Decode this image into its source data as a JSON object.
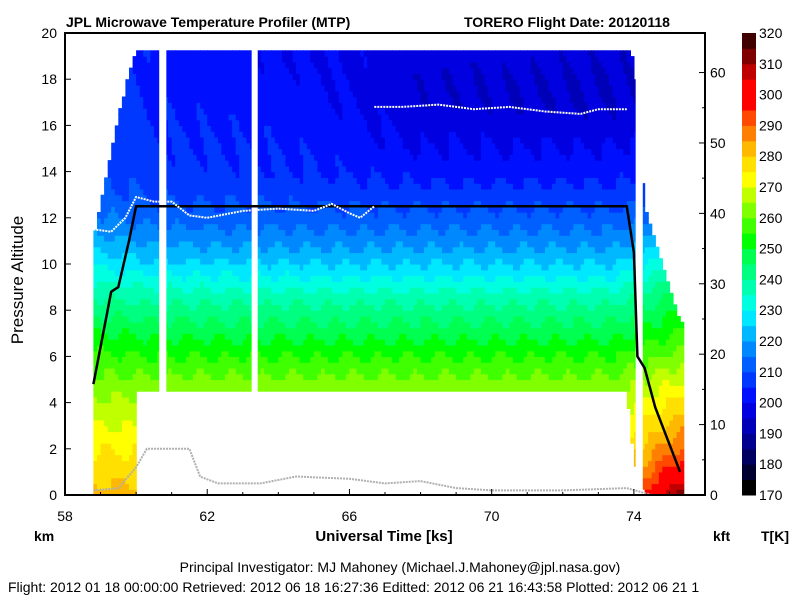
{
  "header": {
    "title": "JPL Microwave Temperature Profiler (MTP)",
    "flight_info": "TORERO  Flight Date: 20120118"
  },
  "footer": {
    "pi": "Principal Investigator: MJ Mahoney (Michael.J.Mahoney@jpl.nasa.gov)",
    "dates": "Flight: 2012 01 18 00:00:00   Retrieved: 2012 06 18 16:27:36   Editted: 2012 06 21 16:43:58  Plotted: 2012 06 21 1"
  },
  "chart_data": {
    "type": "heatmap",
    "title": "JPL Microwave Temperature Profiler (MTP)",
    "xlabel": "Universal Time [ks]",
    "ylabel": "Pressure Altitude",
    "y_unit_left": "km",
    "y_unit_right": "kft",
    "colorbar_label": "T[K]",
    "xlim": [
      58,
      76
    ],
    "ylim": [
      0,
      20
    ],
    "y2lim_kft": [
      0,
      65.6
    ],
    "xticks": [
      "58",
      "62",
      "66",
      "70",
      "74"
    ],
    "yticks": [
      "0",
      "2",
      "4",
      "6",
      "8",
      "10",
      "12",
      "14",
      "16",
      "18",
      "20"
    ],
    "y2ticks": [
      "0",
      "10",
      "20",
      "30",
      "40",
      "50",
      "60"
    ],
    "colorbar": {
      "range": [
        170,
        320
      ],
      "step": 5,
      "ticks": [
        "170",
        "180",
        "190",
        "200",
        "210",
        "220",
        "230",
        "240",
        "250",
        "260",
        "270",
        "280",
        "290",
        "300",
        "310",
        "320"
      ],
      "colors": [
        "#000000",
        "#000030",
        "#000060",
        "#000090",
        "#0000b8",
        "#0000e0",
        "#0010ff",
        "#0038ff",
        "#0060ff",
        "#0088ff",
        "#00b8ff",
        "#00e8ff",
        "#00ffe0",
        "#00ffb0",
        "#00ff80",
        "#00ff50",
        "#00ff00",
        "#40ff00",
        "#80ff00",
        "#c0ff00",
        "#ffff00",
        "#ffe000",
        "#ffb800",
        "#ff8000",
        "#ff4800",
        "#ff0000",
        "#ff0000",
        "#c00000",
        "#800000",
        "#400000"
      ]
    },
    "altitudes_km": [
      0,
      1,
      2,
      3,
      4,
      5,
      6,
      7,
      8,
      9,
      10,
      11,
      12,
      13,
      14,
      15,
      16,
      17,
      18,
      19,
      20
    ],
    "profiles": [
      {
        "time": 58.8,
        "temps": [
          282,
          278,
          275,
          270,
          266,
          261,
          256,
          250,
          244,
          237,
          229,
          222,
          216,
          212,
          210,
          210,
          210,
          210,
          210,
          210,
          210
        ]
      },
      {
        "time": 60.5,
        "temps": [
          282,
          278,
          274,
          270,
          266,
          261,
          255,
          249,
          242,
          235,
          226,
          219,
          213,
          209,
          207,
          206,
          205,
          204,
          203,
          203,
          203
        ]
      },
      {
        "time": 65.0,
        "temps": [
          282,
          278,
          274,
          270,
          266,
          261,
          255,
          248,
          242,
          234,
          225,
          218,
          212,
          208,
          205,
          204,
          203,
          202,
          201,
          200,
          200
        ]
      },
      {
        "time": 68.0,
        "temps": [
          282,
          278,
          274,
          270,
          266,
          261,
          255,
          248,
          242,
          234,
          225,
          218,
          212,
          207,
          203,
          200,
          198,
          196,
          196,
          197,
          197
        ]
      },
      {
        "time": 73.5,
        "temps": [
          283,
          279,
          275,
          271,
          266,
          261,
          255,
          248,
          242,
          234,
          225,
          218,
          212,
          207,
          203,
          200,
          197,
          195,
          195,
          196,
          196
        ]
      },
      {
        "time": 75.3,
        "temps": [
          312,
          300,
          290,
          283,
          277,
          270,
          262,
          256,
          250,
          244,
          235,
          225,
          215,
          210,
          205,
          203,
          200,
          198,
          198,
          198,
          198
        ]
      }
    ],
    "coverage": [
      {
        "time": 58.8,
        "bottom_km": 0.0,
        "top_km": 11.0
      },
      {
        "time": 59.5,
        "bottom_km": 0.0,
        "top_km": 16.5
      },
      {
        "time": 60.0,
        "bottom_km": 0.0,
        "top_km": 19.3
      },
      {
        "time": 60.1,
        "bottom_km": 4.5,
        "top_km": 19.3
      },
      {
        "time": 73.8,
        "bottom_km": 4.5,
        "top_km": 19.3
      },
      {
        "time": 74.0,
        "bottom_km": 1.5,
        "top_km": 19.0
      },
      {
        "time": 74.3,
        "bottom_km": 0.0,
        "top_km": 12.5
      },
      {
        "time": 75.3,
        "bottom_km": 0.0,
        "top_km": 7.5
      }
    ],
    "gaps_ks": [
      [
        60.65,
        60.85
      ],
      [
        63.25,
        63.42
      ],
      [
        74.05,
        74.25
      ]
    ],
    "series": [
      {
        "name": "aircraft altitude",
        "color": "#000000",
        "x": [
          58.8,
          59.3,
          59.5,
          59.8,
          60.0,
          73.8,
          74.0,
          74.1,
          74.3,
          74.6,
          75.0,
          75.3
        ],
        "y": [
          4.8,
          8.8,
          9.0,
          11.0,
          12.5,
          12.5,
          10.5,
          6.0,
          5.5,
          3.8,
          2.2,
          1.0
        ]
      },
      {
        "name": "tropopause",
        "color": "#ffffff",
        "x": [
          58.8,
          59.3,
          59.7,
          60.0,
          60.5,
          61.0,
          61.5,
          62.0,
          63.0,
          64.0,
          65.0,
          65.5,
          66.0,
          66.3,
          66.7
        ],
        "y": [
          11.5,
          11.4,
          12.0,
          12.9,
          12.7,
          12.7,
          12.1,
          12.0,
          12.3,
          12.4,
          12.3,
          12.6,
          12.2,
          12.0,
          12.5
        ]
      },
      {
        "name": "upper tropopause",
        "color": "#ffffff",
        "x": [
          66.7,
          67.5,
          68.5,
          69.5,
          70.5,
          71.5,
          72.5,
          73.0,
          73.8
        ],
        "y": [
          16.8,
          16.8,
          16.9,
          16.7,
          16.8,
          16.6,
          16.5,
          16.7,
          16.7
        ]
      },
      {
        "name": "gray trace",
        "color": "#b0b0b0",
        "x": [
          58.8,
          59.5,
          60.0,
          60.3,
          61.5,
          61.8,
          62.3,
          63.5,
          64.5,
          66.0,
          67.0,
          68.0,
          69.0,
          70.0,
          72.0,
          73.8,
          74.5,
          75.3
        ],
        "y": [
          0.2,
          0.3,
          1.2,
          2.0,
          2.0,
          0.8,
          0.5,
          0.5,
          0.8,
          0.7,
          0.5,
          0.6,
          0.3,
          0.2,
          0.2,
          0.3,
          0.0,
          0.0
        ]
      }
    ]
  }
}
